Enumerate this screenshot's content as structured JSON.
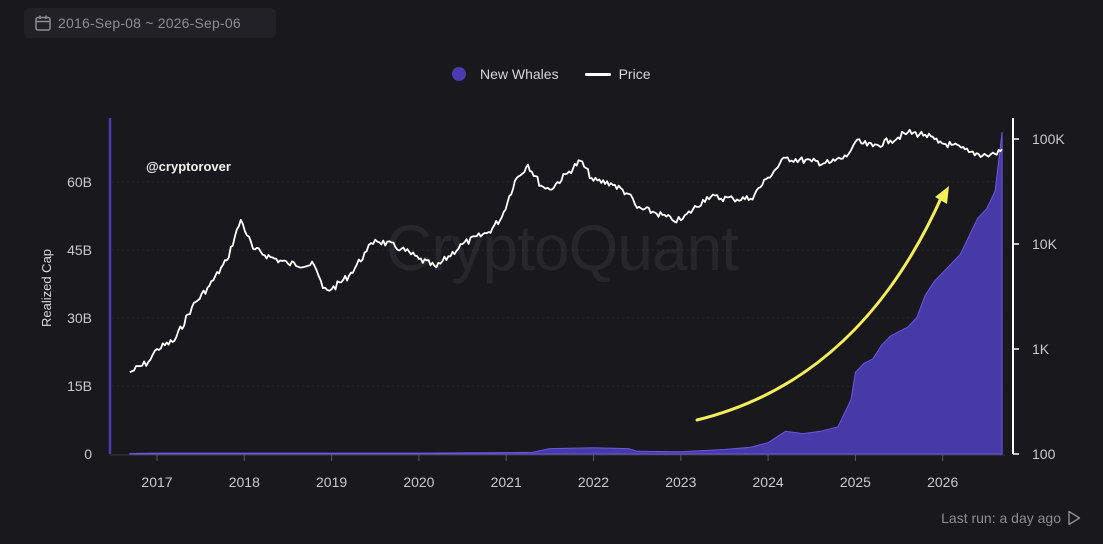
{
  "date_range": {
    "text": "2016-Sep-08 ~ 2026-Sep-06",
    "icon": "calendar-icon"
  },
  "legend": [
    {
      "label": "New Whales",
      "color": "#4b3bb0",
      "marker": "dot"
    },
    {
      "label": "Price",
      "color": "#ffffff",
      "marker": "line"
    }
  ],
  "watermark": "CryptoQuant",
  "annotation": "@cryptorover",
  "last_run": {
    "text": "Last run: a day ago",
    "icon": "play-icon"
  },
  "colors": {
    "background": "#19181d",
    "area": "#4b3bb0",
    "price": "#ffffff",
    "arrow": "#f2ee5c"
  },
  "chart_data": {
    "type": "area",
    "x_ticks": [
      "2017",
      "2018",
      "2019",
      "2020",
      "2021",
      "2022",
      "2023",
      "2024",
      "2025",
      "2026"
    ],
    "ylabel": "Realized Cap",
    "y_left_ticks": [
      "0",
      "15B",
      "30B",
      "45B",
      "60B"
    ],
    "y_left_range": [
      0,
      72
    ],
    "y_right_ticks": [
      "100",
      "1K",
      "10K",
      "100K"
    ],
    "y_right_scale": "log",
    "y_right_range": [
      100,
      150000
    ],
    "grid": true,
    "legend_position": "top-center",
    "series": [
      {
        "name": "New Whales",
        "axis": "left",
        "unit": "B",
        "x": [
          2016.69,
          2017.0,
          2018.0,
          2019.0,
          2020.0,
          2021.0,
          2021.3,
          2021.5,
          2022.0,
          2022.4,
          2022.5,
          2023.0,
          2023.5,
          2023.8,
          2024.0,
          2024.2,
          2024.4,
          2024.6,
          2024.8,
          2024.95,
          2025.0,
          2025.1,
          2025.2,
          2025.3,
          2025.4,
          2025.5,
          2025.6,
          2025.7,
          2025.8,
          2025.9,
          2026.0,
          2026.1,
          2026.2,
          2026.3,
          2026.4,
          2026.5,
          2026.6,
          2026.65,
          2026.68
        ],
        "values": [
          0.1,
          0.2,
          0.2,
          0.2,
          0.2,
          0.3,
          0.4,
          1.2,
          1.4,
          1.2,
          0.6,
          0.5,
          1.0,
          1.5,
          2.5,
          5.0,
          4.5,
          5.0,
          6.0,
          12.0,
          18.0,
          20.0,
          21.0,
          24.0,
          26.0,
          27.0,
          28.0,
          30.0,
          35.0,
          38.0,
          40.0,
          42.0,
          44.0,
          48.0,
          52.0,
          54.0,
          58.0,
          66.0,
          71.0
        ]
      },
      {
        "name": "Price",
        "axis": "right",
        "unit": "USD",
        "x": [
          2016.69,
          2016.9,
          2017.0,
          2017.2,
          2017.4,
          2017.6,
          2017.8,
          2017.96,
          2018.1,
          2018.3,
          2018.5,
          2018.8,
          2018.9,
          2019.0,
          2019.2,
          2019.4,
          2019.5,
          2019.8,
          2020.0,
          2020.2,
          2020.5,
          2020.8,
          2020.95,
          2021.1,
          2021.25,
          2021.4,
          2021.5,
          2021.7,
          2021.85,
          2022.0,
          2022.2,
          2022.4,
          2022.5,
          2022.7,
          2022.9,
          2023.0,
          2023.3,
          2023.6,
          2023.8,
          2024.0,
          2024.2,
          2024.5,
          2024.7,
          2024.9,
          2025.0,
          2025.2,
          2025.4,
          2025.6,
          2025.8,
          2025.95,
          2026.1,
          2026.3,
          2026.5,
          2026.6,
          2026.68
        ],
        "values": [
          600,
          750,
          1000,
          1200,
          2500,
          4000,
          7000,
          17000,
          9000,
          7500,
          6500,
          6300,
          3800,
          3700,
          5000,
          8500,
          11000,
          9000,
          7200,
          6000,
          10000,
          13000,
          18000,
          40000,
          57000,
          36000,
          33000,
          47000,
          62000,
          40000,
          38000,
          30000,
          22000,
          20000,
          17000,
          16800,
          28000,
          27000,
          27000,
          43000,
          66000,
          61000,
          59000,
          68000,
          94000,
          85000,
          97000,
          115000,
          110000,
          92000,
          88000,
          75000,
          70000,
          72000,
          80000
        ]
      }
    ]
  }
}
